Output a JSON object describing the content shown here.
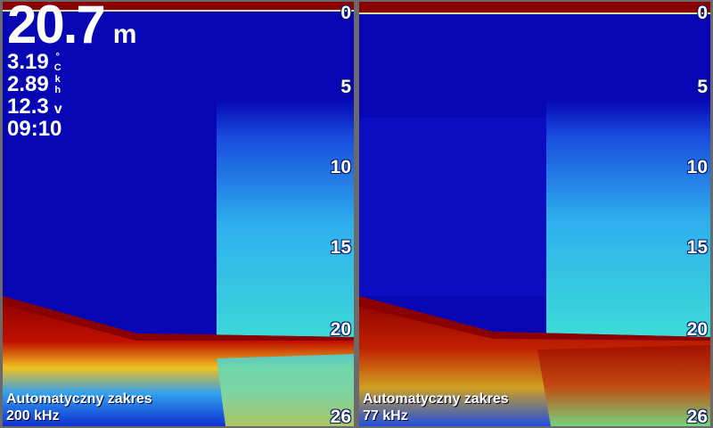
{
  "overlay": {
    "depth": "20.7",
    "depth_unit": "m",
    "temperature": "3.19",
    "temperature_unit": "°C",
    "speed": "2.89",
    "speed_unit": "kh",
    "voltage": "12.3",
    "voltage_unit": "v",
    "time": "09:10"
  },
  "panels": [
    {
      "mode": "Automatyczny zakres",
      "frequency": "200 kHz",
      "scale": [
        "0",
        "5",
        "10",
        "15",
        "20",
        "26"
      ]
    },
    {
      "mode": "Automatyczny zakres",
      "frequency": "77 kHz",
      "scale": [
        "0",
        "5",
        "10",
        "15",
        "20",
        "26"
      ]
    }
  ],
  "colors": {
    "water": "#0606b4",
    "strong_return": "#8a0000",
    "mid_return": "#30e0d0",
    "frame": "#6a6a6a"
  }
}
